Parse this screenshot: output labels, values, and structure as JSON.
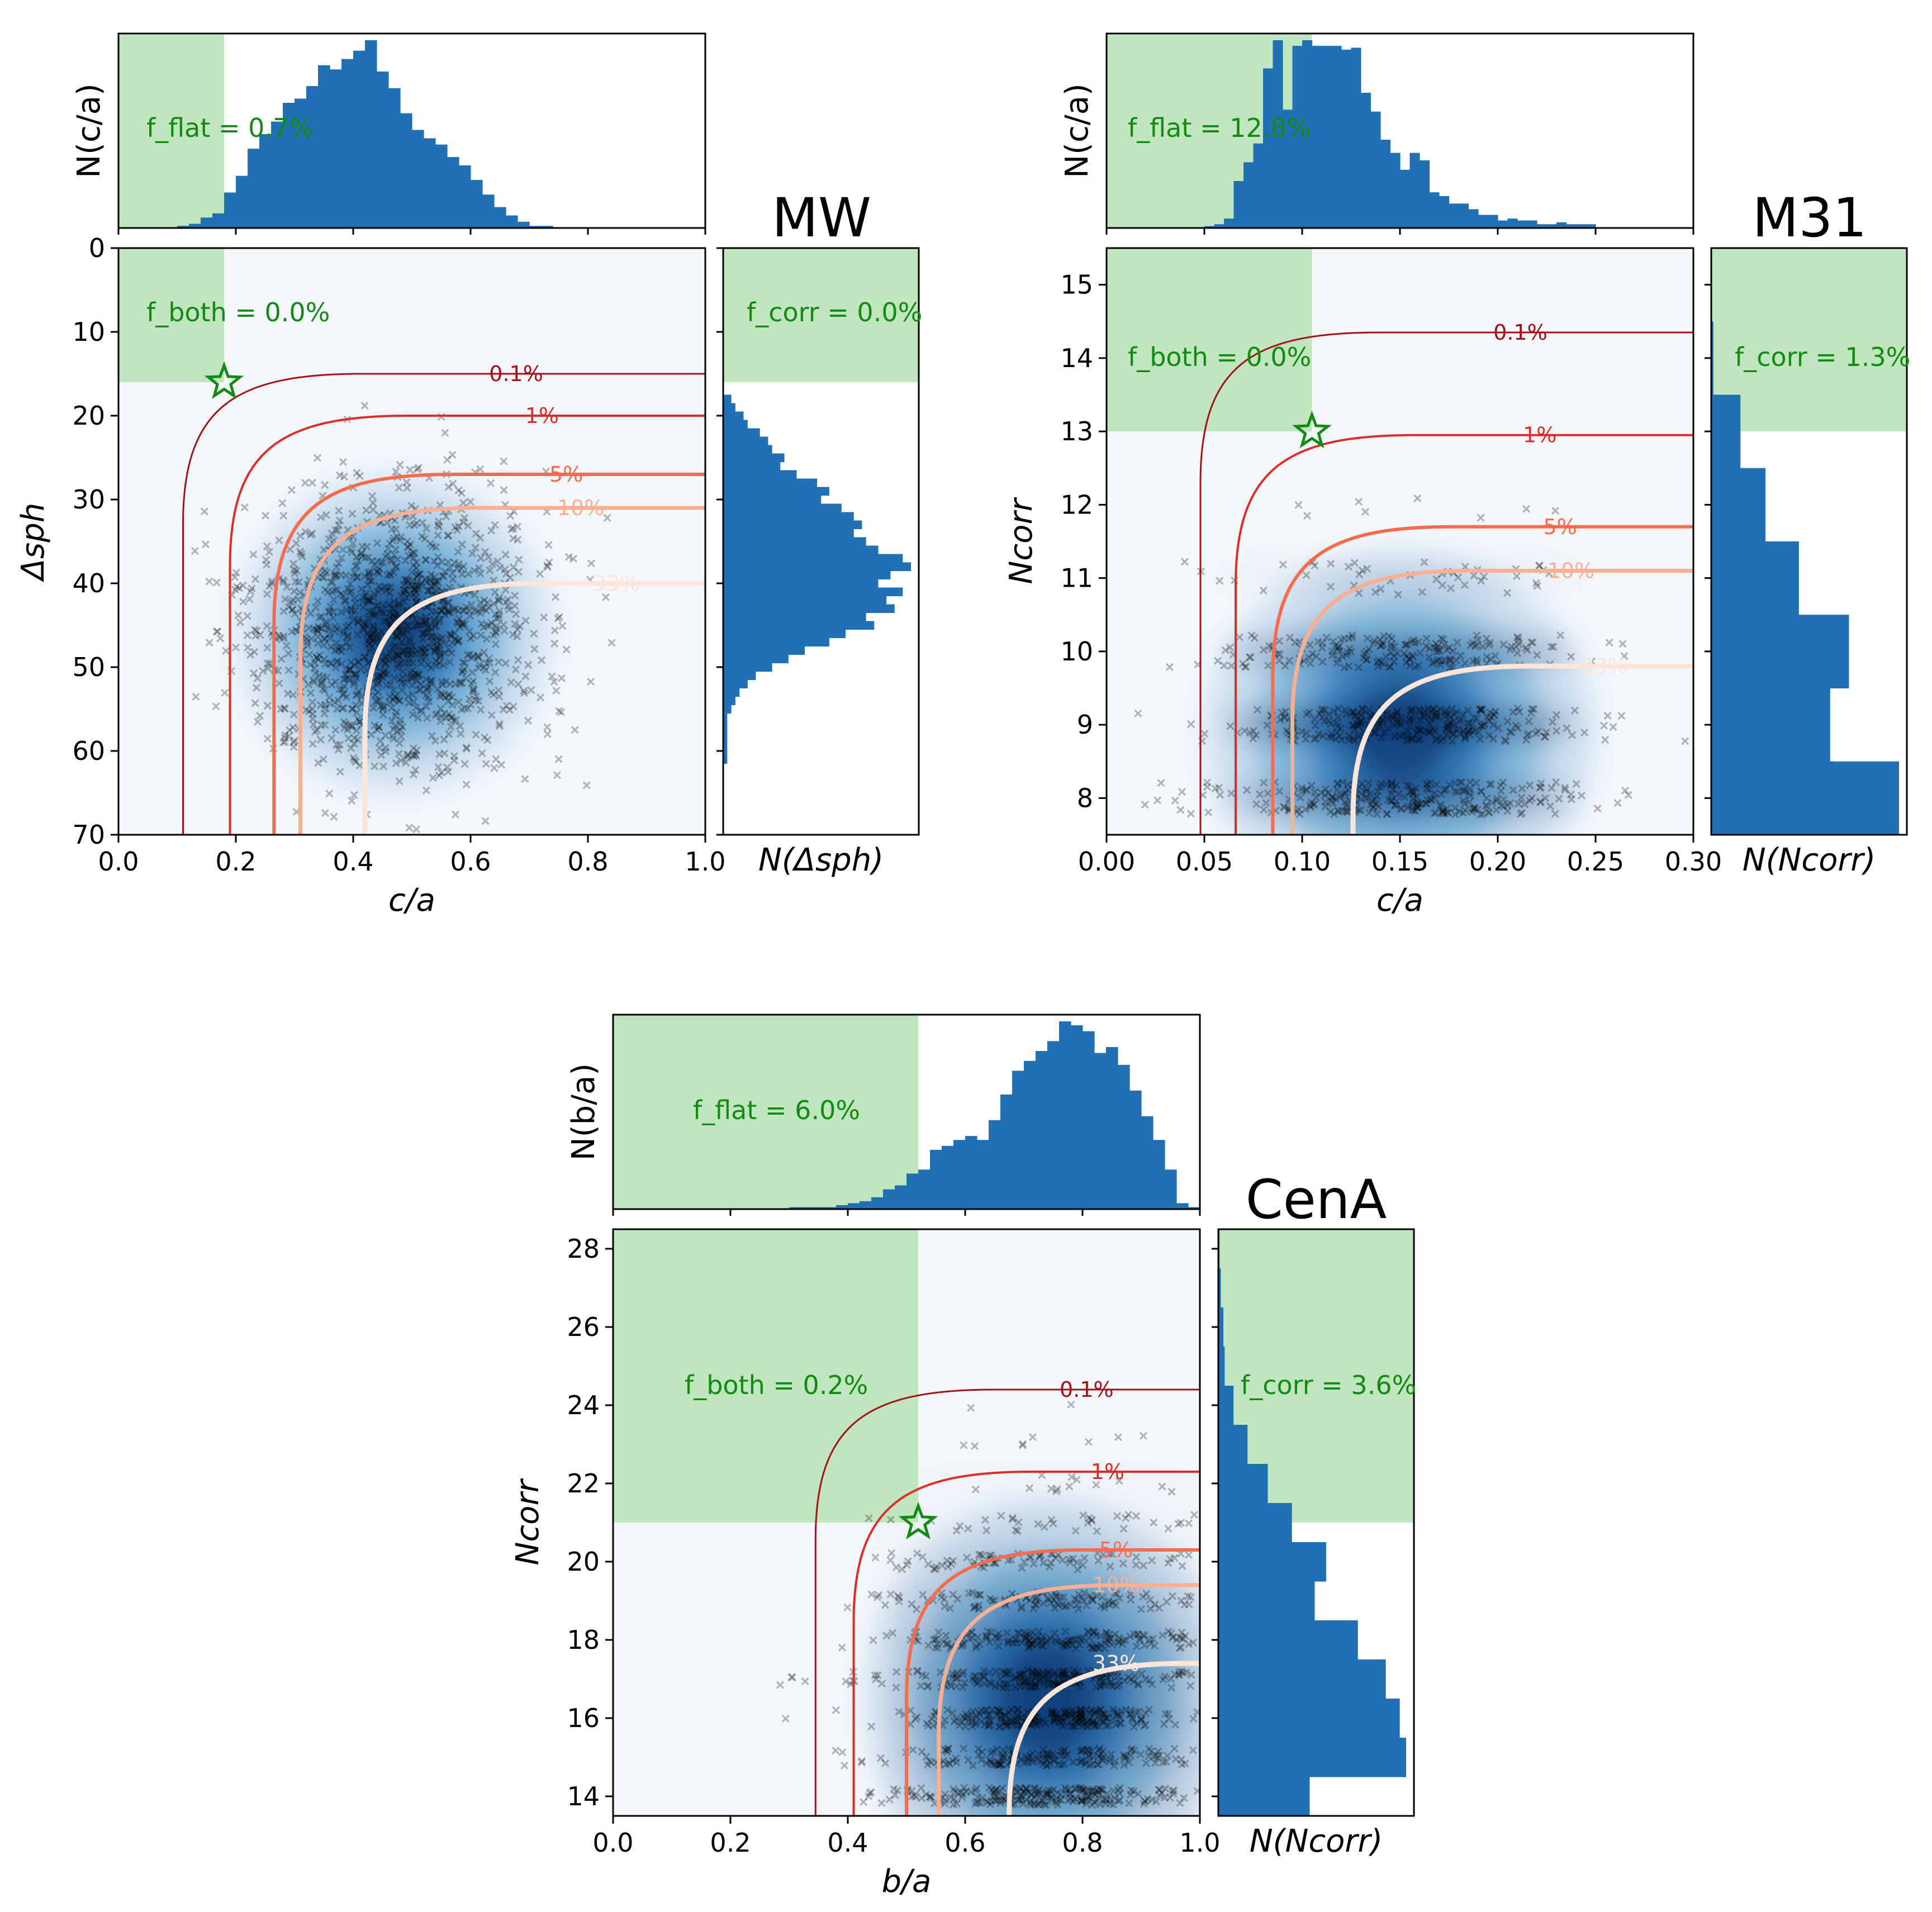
{
  "chart_data": [
    {
      "type": "scatter",
      "panel": "MW",
      "title": "MW",
      "xlabel": "c/a",
      "ylabel": "Δsph",
      "xlim": [
        0.0,
        1.0
      ],
      "ylim": [
        70,
        0
      ],
      "xticks": [
        "0.0",
        "0.2",
        "0.4",
        "0.6",
        "0.8",
        "1.0"
      ],
      "yticks": [
        "0",
        "10",
        "20",
        "30",
        "40",
        "50",
        "60",
        "70"
      ],
      "top_hist_ylabel": "N(c/a)",
      "side_hist_xlabel": "N(Δsph)",
      "annotations": {
        "f_flat": "f_flat = 0.7%",
        "f_both": "f_both = 0.0%",
        "f_corr": "f_corr = 0.0%"
      },
      "observed": {
        "x": 0.18,
        "y": 16
      },
      "thresholds": {
        "x": 0.18,
        "y": 16
      },
      "cloud": {
        "cx": 0.47,
        "cy": 46,
        "sx": 0.12,
        "sy": 8.5,
        "n": 1300,
        "discrete": false
      },
      "contours": [
        {
          "label": "0.1%",
          "color": "#a50f15",
          "x0": 0.11,
          "y_top": 15
        },
        {
          "label": "1%",
          "color": "#de2d26",
          "x0": 0.19,
          "y_top": 20
        },
        {
          "label": "5%",
          "color": "#fb6a4a",
          "x0": 0.265,
          "y_top": 27
        },
        {
          "label": "10%",
          "color": "#fcae91",
          "x0": 0.31,
          "y_top": 31
        },
        {
          "label": "33%",
          "color": "#fee5d9",
          "x0": 0.42,
          "y_top": 40
        }
      ],
      "top_hist": {
        "bin_start": 0.1,
        "bin_width": 0.02,
        "counts": [
          1,
          2,
          5,
          7,
          17,
          25,
          38,
          45,
          51,
          60,
          62,
          68,
          78,
          76,
          81,
          85,
          90,
          75,
          67,
          55,
          47,
          43,
          40,
          34,
          30,
          23,
          16,
          10,
          6,
          3,
          1,
          1
        ]
      },
      "side_hist": {
        "bin_start": 17.5,
        "bin_width": 1,
        "counts": [
          2,
          3,
          5,
          6,
          9,
          11,
          12,
          15,
          14,
          18,
          23,
          26,
          24,
          29,
          32,
          34,
          32,
          35,
          38,
          44,
          46,
          41,
          38,
          44,
          40,
          42,
          35,
          37,
          30,
          26,
          20,
          16,
          12,
          8,
          6,
          4,
          3,
          2,
          1,
          1,
          1,
          1,
          1,
          1,
          0,
          0,
          0
        ]
      }
    },
    {
      "type": "scatter",
      "panel": "M31",
      "title": "M31",
      "xlabel": "c/a",
      "ylabel": "Ncorr",
      "xlim": [
        0.0,
        0.3
      ],
      "ylim": [
        7.5,
        15.5
      ],
      "xticks": [
        "0.00",
        "0.05",
        "0.10",
        "0.15",
        "0.20",
        "0.25",
        "0.30"
      ],
      "yticks": [
        "8",
        "9",
        "10",
        "11",
        "12",
        "13",
        "14",
        "15"
      ],
      "top_hist_ylabel": "N(c/a)",
      "side_hist_xlabel": "N(Ncorr)",
      "annotations": {
        "f_flat": "f_flat = 12.8%",
        "f_both": "f_both = 0.0%",
        "f_corr": "f_corr = 1.3%"
      },
      "observed": {
        "x": 0.105,
        "y": 13
      },
      "thresholds": {
        "x": 0.105,
        "y": 13
      },
      "cloud": {
        "cx": 0.15,
        "cy": 8.9,
        "sx": 0.045,
        "sy": 1.1,
        "n": 800,
        "discrete": true
      },
      "contours": [
        {
          "label": "0.1%",
          "color": "#a50f15",
          "x0": 0.048,
          "y_top": 14.35
        },
        {
          "label": "1%",
          "color": "#de2d26",
          "x0": 0.066,
          "y_top": 12.95
        },
        {
          "label": "5%",
          "color": "#fb6a4a",
          "x0": 0.085,
          "y_top": 11.7
        },
        {
          "label": "10%",
          "color": "#fcae91",
          "x0": 0.095,
          "y_top": 11.1
        },
        {
          "label": "33%",
          "color": "#fee5d9",
          "x0": 0.126,
          "y_top": 9.8
        }
      ],
      "top_hist": {
        "bin_start": 0.05,
        "bin_width": 0.005,
        "counts": [
          1,
          2,
          5,
          25,
          35,
          45,
          85,
          100,
          63,
          97,
          100,
          97,
          97,
          97,
          95,
          96,
          72,
          62,
          47,
          40,
          31,
          40,
          36,
          19,
          17,
          13,
          13,
          10,
          7,
          7,
          4,
          5,
          4,
          4,
          2,
          2,
          3,
          2,
          2,
          2
        ]
      },
      "side_hist": {
        "bin_start": 7.5,
        "bin_width": 1,
        "counts": [
          90,
          57,
          66,
          42,
          26,
          14,
          1,
          0
        ]
      }
    },
    {
      "type": "scatter",
      "panel": "CenA",
      "title": "CenA",
      "xlabel": "b/a",
      "ylabel": "Ncorr",
      "xlim": [
        0.0,
        1.0
      ],
      "ylim": [
        13.5,
        28.5
      ],
      "xticks": [
        "0.0",
        "0.2",
        "0.4",
        "0.6",
        "0.8",
        "1.0"
      ],
      "yticks": [
        "14",
        "16",
        "18",
        "20",
        "22",
        "24",
        "26",
        "28"
      ],
      "top_hist_ylabel": "N(b/a)",
      "side_hist_xlabel": "N(Ncorr)",
      "annotations": {
        "f_flat": "f_flat = 6.0%",
        "f_both": "f_both = 0.2%",
        "f_corr": "f_corr = 3.6%"
      },
      "observed": {
        "x": 0.52,
        "y": 21
      },
      "thresholds": {
        "x": 0.52,
        "y": 21
      },
      "cloud": {
        "cx": 0.74,
        "cy": 16.5,
        "sx": 0.14,
        "sy": 2.3,
        "n": 1300,
        "discrete": true
      },
      "contours": [
        {
          "label": "0.1%",
          "color": "#a50f15",
          "x0": 0.345,
          "y_top": 24.4
        },
        {
          "label": "1%",
          "color": "#de2d26",
          "x0": 0.41,
          "y_top": 22.3
        },
        {
          "label": "5%",
          "color": "#fb6a4a",
          "x0": 0.5,
          "y_top": 20.3
        },
        {
          "label": "10%",
          "color": "#fcae91",
          "x0": 0.555,
          "y_top": 19.4
        },
        {
          "label": "33%",
          "color": "#fee5d9",
          "x0": 0.675,
          "y_top": 17.4
        }
      ],
      "top_hist": {
        "bin_start": 0.3,
        "bin_width": 0.02,
        "counts": [
          1,
          1,
          1,
          1,
          2,
          3,
          4,
          6,
          10,
          12,
          18,
          20,
          30,
          32,
          35,
          37,
          35,
          45,
          58,
          70,
          75,
          80,
          85,
          95,
          93,
          90,
          79,
          82,
          73,
          60,
          47,
          35,
          20,
          3,
          1
        ]
      },
      "side_hist": {
        "bin_start": 13.5,
        "bin_width": 1,
        "counts": [
          72,
          148,
          143,
          132,
          110,
          76,
          85,
          58,
          39,
          23,
          12,
          5,
          4,
          2,
          1,
          0
        ]
      }
    }
  ]
}
